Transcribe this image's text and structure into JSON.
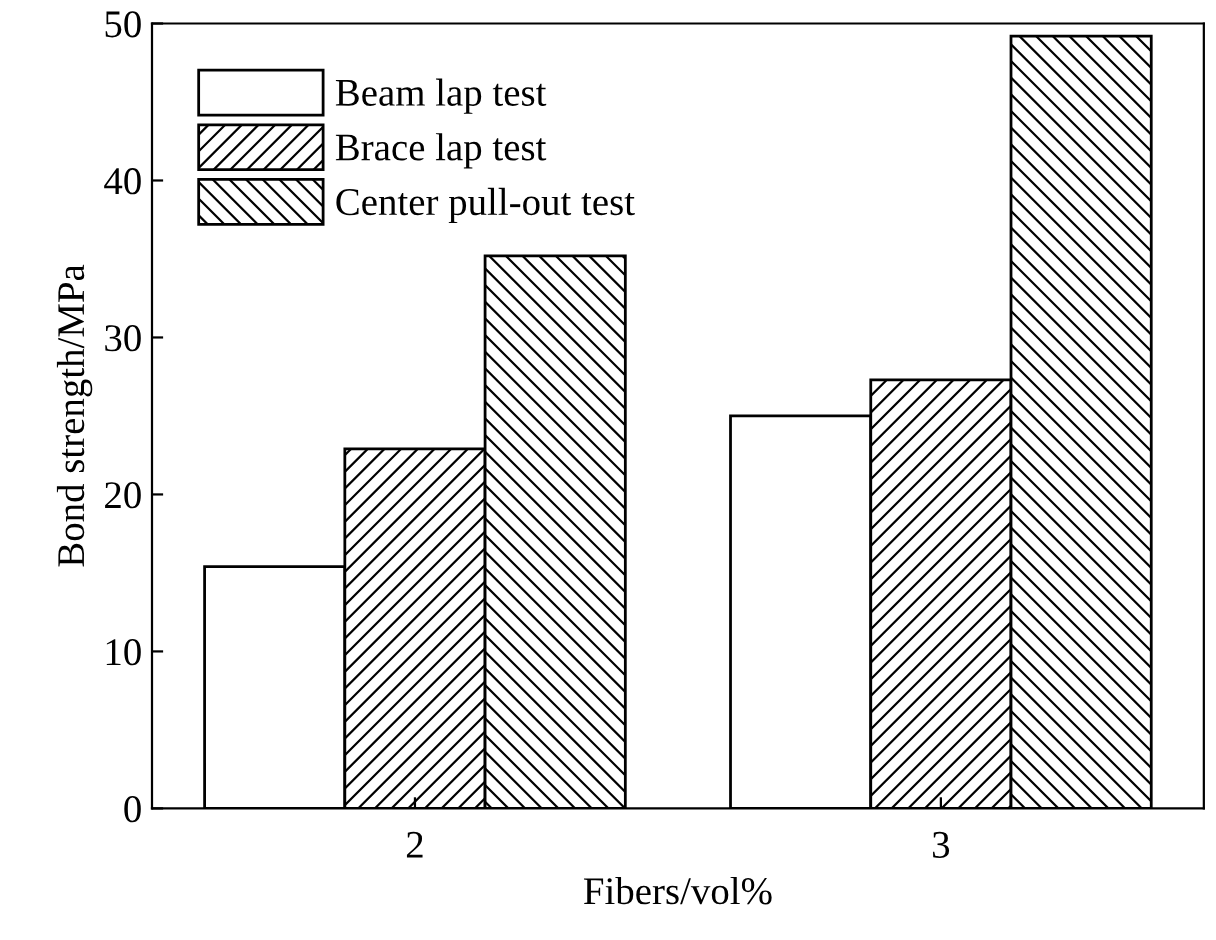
{
  "chart_data": {
    "type": "bar",
    "xlabel": "Fibers/vol%",
    "ylabel": "Bond strength/MPa",
    "categories": [
      "2",
      "3"
    ],
    "series": [
      {
        "name": "Beam lap test",
        "color": "#ffffff",
        "values": [
          15.4,
          25.0
        ]
      },
      {
        "name": "Brace lap test",
        "color": "#000000",
        "values": [
          22.9,
          27.3
        ]
      },
      {
        "name": "Center pull-out test",
        "color": "#000000",
        "values": [
          35.2,
          49.2
        ]
      }
    ],
    "ylim": [
      0,
      50
    ],
    "yticks": [
      0,
      10,
      20,
      30,
      40,
      50
    ],
    "grid": false,
    "legend": "top left"
  }
}
